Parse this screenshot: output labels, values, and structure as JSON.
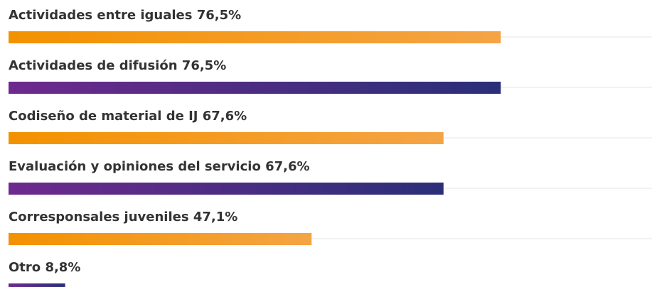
{
  "chart_data": {
    "type": "hbar",
    "categories": [
      "Actividades entre iguales",
      "Actividades de difusión",
      "Codiseño de material de IJ",
      "Evaluación y opiniones del servicio",
      "Corresponsales juveniles",
      "Otro"
    ],
    "values": [
      76.5,
      76.5,
      67.6,
      67.6,
      47.1,
      8.8
    ],
    "value_labels": [
      "76,5%",
      "76,5%",
      "67,6%",
      "67,6%",
      "47,1%",
      "8,8%"
    ],
    "colors": [
      [
        "#f39200",
        "#f5a445"
      ],
      [
        "#6e2a8e",
        "#2a2f78"
      ],
      [
        "#f39200",
        "#f5a445"
      ],
      [
        "#6e2a8e",
        "#2a2f78"
      ],
      [
        "#f39200",
        "#f5a445"
      ],
      [
        "#6e2a8e",
        "#2a2f78"
      ]
    ],
    "xlim": [
      0,
      100
    ]
  }
}
